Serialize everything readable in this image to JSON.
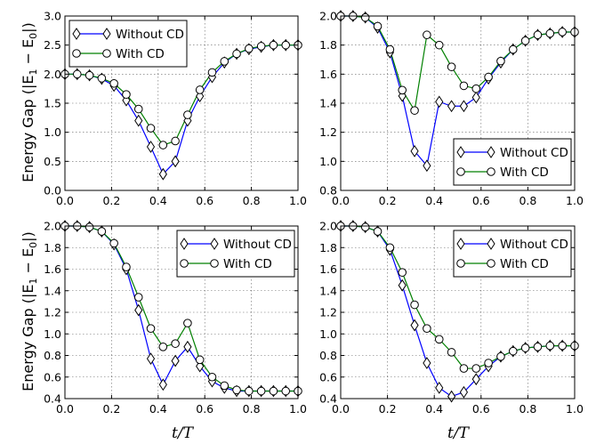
{
  "figure": {
    "ylabel": "Energy Gap (|E",
    "ylabel_sub1": "1",
    "ylabel_mid": " − E",
    "ylabel_sub0": "0",
    "ylabel_end": "|)",
    "xlabel": "t/T"
  },
  "chart_data": [
    {
      "type": "line",
      "panel": "top-left",
      "xlim": [
        0.0,
        1.0
      ],
      "ylim": [
        0.0,
        3.0
      ],
      "xticks": [
        "0.0",
        "0.2",
        "0.4",
        "0.6",
        "0.8",
        "1.0"
      ],
      "yticks": [
        "0.0",
        "0.5",
        "1.0",
        "1.5",
        "2.0",
        "2.5",
        "3.0"
      ],
      "xtick_values": [
        0.0,
        0.2,
        0.4,
        0.6,
        0.8,
        1.0
      ],
      "ytick_values": [
        0.0,
        0.5,
        1.0,
        1.5,
        2.0,
        2.5,
        3.0
      ],
      "grid": true,
      "legend_position": "top-left",
      "x": [
        0.0,
        0.0526,
        0.1053,
        0.1579,
        0.2105,
        0.2632,
        0.3158,
        0.3684,
        0.4211,
        0.4737,
        0.5263,
        0.5789,
        0.6316,
        0.6842,
        0.7368,
        0.7895,
        0.8421,
        0.8947,
        0.9474,
        1.0
      ],
      "series": [
        {
          "name": "Without CD",
          "color": "#0000ff",
          "marker": "diamond",
          "values": [
            2.0,
            2.0,
            1.98,
            1.92,
            1.8,
            1.55,
            1.2,
            0.75,
            0.28,
            0.5,
            1.2,
            1.62,
            1.95,
            2.2,
            2.35,
            2.43,
            2.47,
            2.5,
            2.5,
            2.5
          ]
        },
        {
          "name": "With CD",
          "color": "#008000",
          "marker": "circle",
          "values": [
            2.0,
            2.0,
            1.98,
            1.93,
            1.84,
            1.65,
            1.4,
            1.07,
            0.78,
            0.85,
            1.3,
            1.73,
            2.03,
            2.22,
            2.35,
            2.44,
            2.48,
            2.5,
            2.5,
            2.5
          ]
        }
      ]
    },
    {
      "type": "line",
      "panel": "top-right",
      "xlim": [
        0.0,
        1.0
      ],
      "ylim": [
        0.8,
        2.0
      ],
      "xticks": [
        "0.0",
        "0.2",
        "0.4",
        "0.6",
        "0.8",
        "1.0"
      ],
      "yticks": [
        "0.8",
        "1.0",
        "1.2",
        "1.4",
        "1.6",
        "1.8",
        "2.0"
      ],
      "xtick_values": [
        0.0,
        0.2,
        0.4,
        0.6,
        0.8,
        1.0
      ],
      "ytick_values": [
        0.8,
        1.0,
        1.2,
        1.4,
        1.6,
        1.8,
        2.0
      ],
      "grid": true,
      "legend_position": "bottom-right",
      "x": [
        0.0,
        0.0526,
        0.1053,
        0.1579,
        0.2105,
        0.2632,
        0.3158,
        0.3684,
        0.4211,
        0.4737,
        0.5263,
        0.5789,
        0.6316,
        0.6842,
        0.7368,
        0.7895,
        0.8421,
        0.8947,
        0.9474,
        1.0
      ],
      "series": [
        {
          "name": "Without CD",
          "color": "#0000ff",
          "marker": "diamond",
          "values": [
            2.0,
            2.0,
            1.99,
            1.92,
            1.75,
            1.45,
            1.07,
            0.97,
            1.41,
            1.38,
            1.38,
            1.44,
            1.57,
            1.68,
            1.77,
            1.83,
            1.87,
            1.88,
            1.89,
            1.89
          ]
        },
        {
          "name": "With CD",
          "color": "#008000",
          "marker": "circle",
          "values": [
            2.0,
            2.0,
            1.99,
            1.93,
            1.77,
            1.49,
            1.35,
            1.87,
            1.8,
            1.65,
            1.52,
            1.5,
            1.58,
            1.69,
            1.77,
            1.83,
            1.87,
            1.88,
            1.89,
            1.89
          ]
        }
      ]
    },
    {
      "type": "line",
      "panel": "bottom-left",
      "xlim": [
        0.0,
        1.0
      ],
      "ylim": [
        0.4,
        2.0
      ],
      "xticks": [
        "0.0",
        "0.2",
        "0.4",
        "0.6",
        "0.8",
        "1.0"
      ],
      "yticks": [
        "0.4",
        "0.6",
        "0.8",
        "1.0",
        "1.2",
        "1.4",
        "1.6",
        "1.8",
        "2.0"
      ],
      "xtick_values": [
        0.0,
        0.2,
        0.4,
        0.6,
        0.8,
        1.0
      ],
      "ytick_values": [
        0.4,
        0.6,
        0.8,
        1.0,
        1.2,
        1.4,
        1.6,
        1.8,
        2.0
      ],
      "grid": true,
      "legend_position": "top-right",
      "x": [
        0.0,
        0.0526,
        0.1053,
        0.1579,
        0.2105,
        0.2632,
        0.3158,
        0.3684,
        0.4211,
        0.4737,
        0.5263,
        0.5789,
        0.6316,
        0.6842,
        0.7368,
        0.7895,
        0.8421,
        0.8947,
        0.9474,
        1.0
      ],
      "series": [
        {
          "name": "Without CD",
          "color": "#0000ff",
          "marker": "diamond",
          "values": [
            2.0,
            2.0,
            1.99,
            1.95,
            1.83,
            1.6,
            1.22,
            0.77,
            0.53,
            0.75,
            0.88,
            0.7,
            0.56,
            0.5,
            0.47,
            0.47,
            0.47,
            0.47,
            0.47,
            0.47
          ]
        },
        {
          "name": "With CD",
          "color": "#008000",
          "marker": "circle",
          "values": [
            2.0,
            2.0,
            1.99,
            1.95,
            1.84,
            1.62,
            1.34,
            1.05,
            0.88,
            0.91,
            1.1,
            0.76,
            0.6,
            0.52,
            0.48,
            0.47,
            0.47,
            0.47,
            0.47,
            0.47
          ]
        }
      ]
    },
    {
      "type": "line",
      "panel": "bottom-right",
      "xlim": [
        0.0,
        1.0
      ],
      "ylim": [
        0.4,
        2.0
      ],
      "xticks": [
        "0.0",
        "0.2",
        "0.4",
        "0.6",
        "0.8",
        "1.0"
      ],
      "yticks": [
        "0.4",
        "0.6",
        "0.8",
        "1.0",
        "1.2",
        "1.4",
        "1.6",
        "1.8",
        "2.0"
      ],
      "xtick_values": [
        0.0,
        0.2,
        0.4,
        0.6,
        0.8,
        1.0
      ],
      "ytick_values": [
        0.4,
        0.6,
        0.8,
        1.0,
        1.2,
        1.4,
        1.6,
        1.8,
        2.0
      ],
      "grid": true,
      "legend_position": "top-right",
      "x": [
        0.0,
        0.0526,
        0.1053,
        0.1579,
        0.2105,
        0.2632,
        0.3158,
        0.3684,
        0.4211,
        0.4737,
        0.5263,
        0.5789,
        0.6316,
        0.6842,
        0.7368,
        0.7895,
        0.8421,
        0.8947,
        0.9474,
        1.0
      ],
      "series": [
        {
          "name": "Without CD",
          "color": "#0000ff",
          "marker": "diamond",
          "values": [
            2.0,
            2.0,
            1.99,
            1.95,
            1.78,
            1.45,
            1.08,
            0.73,
            0.5,
            0.42,
            0.46,
            0.58,
            0.7,
            0.79,
            0.84,
            0.87,
            0.88,
            0.89,
            0.89,
            0.89
          ]
        },
        {
          "name": "With CD",
          "color": "#008000",
          "marker": "circle",
          "values": [
            2.0,
            2.0,
            1.99,
            1.95,
            1.8,
            1.57,
            1.27,
            1.05,
            0.95,
            0.83,
            0.68,
            0.68,
            0.73,
            0.79,
            0.84,
            0.87,
            0.88,
            0.89,
            0.89,
            0.89
          ]
        }
      ]
    }
  ]
}
